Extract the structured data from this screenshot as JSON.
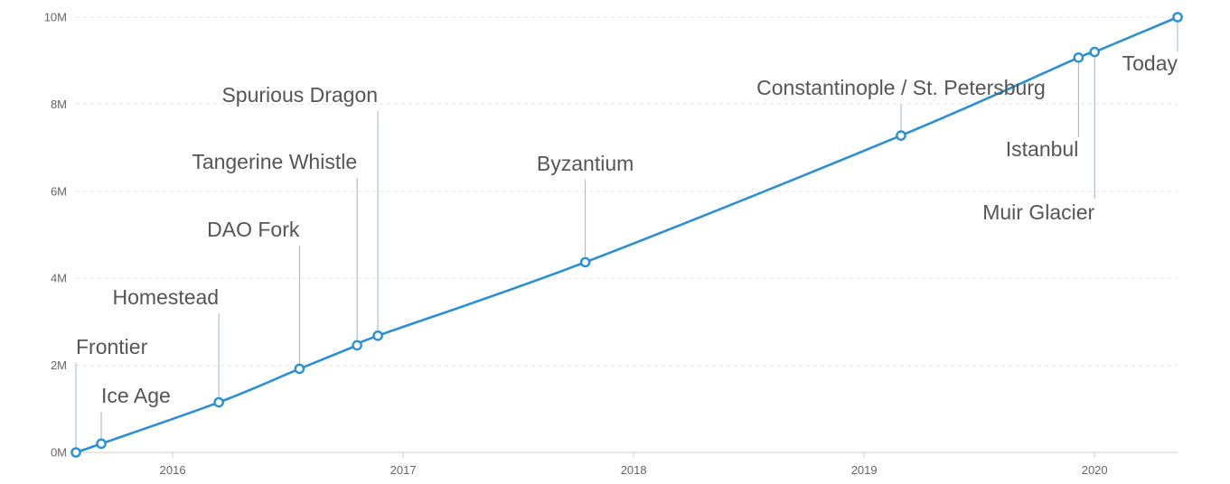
{
  "chart_data": {
    "type": "line",
    "x_unit": "year",
    "xlim": [
      2015.58,
      2020.36
    ],
    "ylim": [
      0,
      10000000
    ],
    "ylabel": "",
    "xlabel": "",
    "grid": true,
    "x_ticks": [
      {
        "value": 2016,
        "label": "2016"
      },
      {
        "value": 2017,
        "label": "2017"
      },
      {
        "value": 2018,
        "label": "2018"
      },
      {
        "value": 2019,
        "label": "2019"
      },
      {
        "value": 2020,
        "label": "2020"
      }
    ],
    "y_ticks": [
      {
        "value": 0,
        "label": "0M"
      },
      {
        "value": 2000000,
        "label": "2M"
      },
      {
        "value": 4000000,
        "label": "4M"
      },
      {
        "value": 6000000,
        "label": "6M"
      },
      {
        "value": 8000000,
        "label": "8M"
      },
      {
        "value": 10000000,
        "label": "10M"
      }
    ],
    "series": [
      {
        "color": "#2b8fd6",
        "points": [
          {
            "x": 2015.58,
            "y": 0,
            "label": "Frontier",
            "label_side": "above"
          },
          {
            "x": 2015.69,
            "y": 200000,
            "label": "Ice Age",
            "label_side": "above"
          },
          {
            "x": 2016.2,
            "y": 1150000,
            "label": "Homestead",
            "label_side": "above"
          },
          {
            "x": 2016.55,
            "y": 1920000,
            "label": "DAO Fork",
            "label_side": "above"
          },
          {
            "x": 2016.8,
            "y": 2460000,
            "label": "Tangerine Whistle",
            "label_side": "above"
          },
          {
            "x": 2016.89,
            "y": 2680000,
            "label": "Spurious Dragon",
            "label_side": "above"
          },
          {
            "x": 2017.79,
            "y": 4370000,
            "label": "Byzantium",
            "label_side": "above"
          },
          {
            "x": 2019.16,
            "y": 7280000,
            "label": "Constantinople / St. Petersburg",
            "label_side": "above"
          },
          {
            "x": 2019.93,
            "y": 9070000,
            "label": "Istanbul",
            "label_side": "below"
          },
          {
            "x": 2020.0,
            "y": 9200000,
            "label": "Muir Glacier",
            "label_side": "below"
          },
          {
            "x": 2020.36,
            "y": 10000000,
            "label": "Today",
            "label_side": "below"
          }
        ]
      }
    ]
  }
}
